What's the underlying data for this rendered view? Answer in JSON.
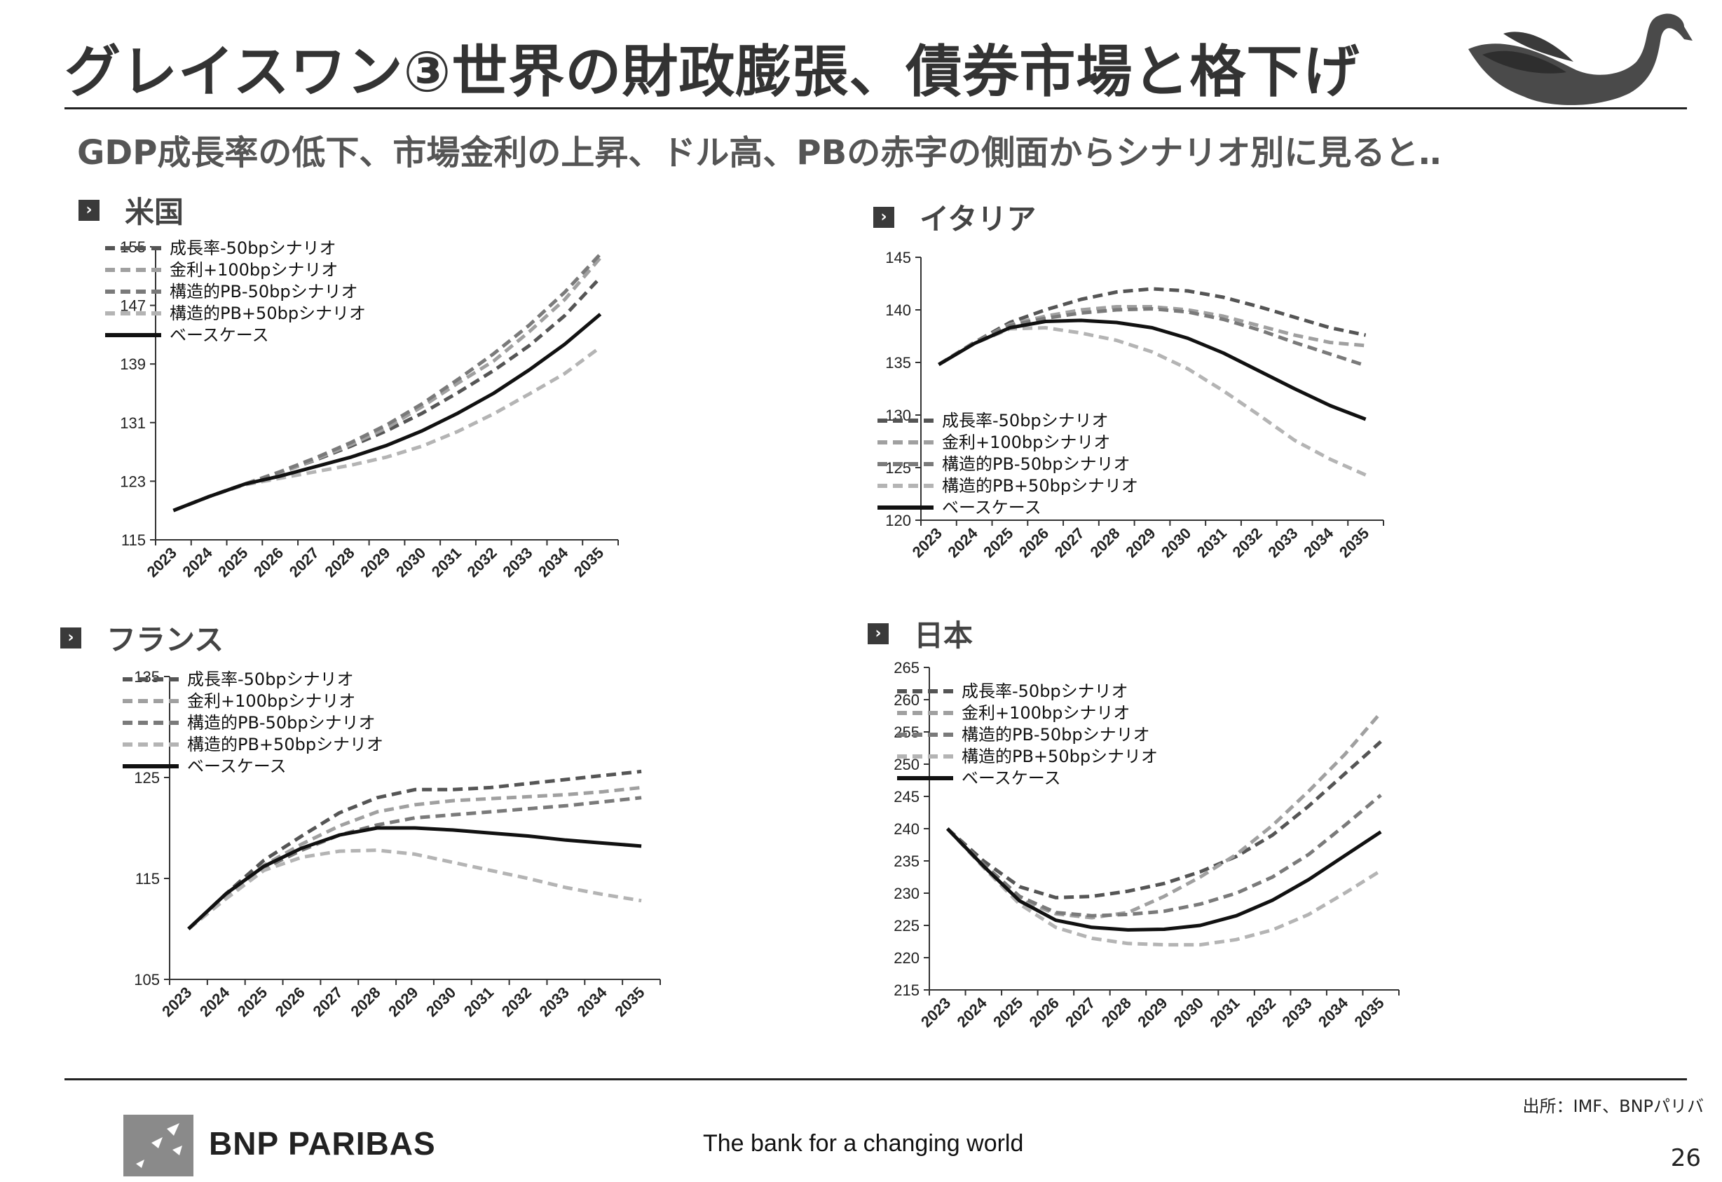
{
  "title": "グレイスワン③世界の財政膨張、債券市場と格下げ",
  "subtitle": "GDP成長率の低下、市場金利の上昇、ドル高、PBの赤字の側面からシナリオ別に見ると‥",
  "section_marker": "›",
  "source": "出所：IMF、BNPパリバ",
  "page_number": "26",
  "brand": {
    "logo_text": "BNP PARIBAS",
    "tagline": "The bank for a changing world"
  },
  "colors": {
    "growth": "#555555",
    "rate": "#a0a0a0",
    "pb_minus": "#7a7a7a",
    "pb_plus": "#b4b4b4",
    "base": "#111111"
  },
  "chart_data": [
    {
      "id": "us",
      "country": "米国",
      "type": "line",
      "categories": [
        "2023",
        "2024",
        "2025",
        "2026",
        "2027",
        "2028",
        "2029",
        "2030",
        "2031",
        "2032",
        "2033",
        "2034",
        "2035"
      ],
      "ylim": [
        115,
        155
      ],
      "yticks": [
        115,
        123,
        131,
        139,
        147,
        155
      ],
      "series": [
        {
          "name": "成長率-50bpシナリオ",
          "style": "growth",
          "values": [
            119.0,
            120.9,
            122.6,
            124.2,
            125.9,
            127.8,
            129.9,
            132.3,
            135.1,
            138.1,
            141.5,
            145.6,
            150.8
          ]
        },
        {
          "name": "金利+100bpシナリオ",
          "style": "rate",
          "values": [
            119.0,
            120.9,
            122.6,
            124.1,
            126.0,
            128.0,
            130.3,
            133.2,
            136.4,
            139.4,
            143.4,
            147.8,
            153.5
          ]
        },
        {
          "name": "構造的PB-50bpシナリオ",
          "style": "pb_minus",
          "values": [
            119.0,
            120.9,
            122.6,
            124.3,
            126.2,
            128.3,
            130.7,
            133.6,
            136.9,
            140.4,
            144.3,
            148.8,
            154.0
          ]
        },
        {
          "name": "構造的PB+50bpシナリオ",
          "style": "pb_plus",
          "values": [
            119.0,
            120.9,
            122.5,
            123.4,
            124.3,
            125.2,
            126.3,
            127.8,
            129.8,
            132.2,
            134.9,
            137.7,
            141.3
          ]
        },
        {
          "name": "ベースケース",
          "style": "base",
          "values": [
            119.0,
            120.9,
            122.6,
            123.7,
            125.0,
            126.3,
            127.9,
            129.9,
            132.3,
            135.0,
            138.2,
            141.7,
            145.8
          ]
        }
      ]
    },
    {
      "id": "italy",
      "country": "イタリア",
      "type": "line",
      "categories": [
        "2023",
        "2024",
        "2025",
        "2026",
        "2027",
        "2028",
        "2029",
        "2030",
        "2031",
        "2032",
        "2033",
        "2034",
        "2035"
      ],
      "ylim": [
        120,
        145
      ],
      "yticks": [
        120,
        125,
        130,
        135,
        140,
        145
      ],
      "series": [
        {
          "name": "成長率-50bpシナリオ",
          "style": "growth",
          "values": [
            134.8,
            136.9,
            138.8,
            140.0,
            141.0,
            141.7,
            142.0,
            141.8,
            141.2,
            140.3,
            139.3,
            138.3,
            137.6
          ]
        },
        {
          "name": "金利+100bpシナリオ",
          "style": "rate",
          "values": [
            134.8,
            136.9,
            138.6,
            139.4,
            140.0,
            140.3,
            140.3,
            140.0,
            139.4,
            138.5,
            137.6,
            136.9,
            136.6
          ]
        },
        {
          "name": "構造的PB-50bpシナリオ",
          "style": "pb_minus",
          "values": [
            134.8,
            136.9,
            138.5,
            139.2,
            139.7,
            140.0,
            140.1,
            139.8,
            139.1,
            138.1,
            136.9,
            135.8,
            134.7
          ]
        },
        {
          "name": "構造的PB+50bpシナリオ",
          "style": "pb_plus",
          "values": [
            134.8,
            136.8,
            138.2,
            138.3,
            137.8,
            137.1,
            136.0,
            134.4,
            132.3,
            130.0,
            127.6,
            125.8,
            124.3
          ]
        },
        {
          "name": "ベースケース",
          "style": "base",
          "values": [
            134.8,
            136.8,
            138.3,
            138.9,
            139.0,
            138.8,
            138.3,
            137.3,
            135.9,
            134.2,
            132.5,
            130.9,
            129.6
          ]
        }
      ]
    },
    {
      "id": "france",
      "country": "フランス",
      "type": "line",
      "categories": [
        "2023",
        "2024",
        "2025",
        "2026",
        "2027",
        "2028",
        "2029",
        "2030",
        "2031",
        "2032",
        "2033",
        "2034",
        "2035"
      ],
      "ylim": [
        105,
        135
      ],
      "yticks": [
        105,
        115,
        125,
        135
      ],
      "series": [
        {
          "name": "成長率-50bpシナリオ",
          "style": "growth",
          "values": [
            110.0,
            113.5,
            116.8,
            119.2,
            121.5,
            123.0,
            123.8,
            123.8,
            124.0,
            124.4,
            124.8,
            125.2,
            125.6
          ]
        },
        {
          "name": "金利+100bpシナリオ",
          "style": "rate",
          "values": [
            110.0,
            113.3,
            116.3,
            118.4,
            120.2,
            121.6,
            122.3,
            122.7,
            122.9,
            123.1,
            123.3,
            123.6,
            124.0
          ]
        },
        {
          "name": "構造的PB-50bpシナリオ",
          "style": "pb_minus",
          "values": [
            110.0,
            113.2,
            116.0,
            117.8,
            119.3,
            120.3,
            121.0,
            121.3,
            121.6,
            121.9,
            122.2,
            122.6,
            123.0
          ]
        },
        {
          "name": "構造的PB+50bpシナリオ",
          "style": "pb_plus",
          "values": [
            110.0,
            113.0,
            115.8,
            117.1,
            117.7,
            117.8,
            117.4,
            116.6,
            115.8,
            115.0,
            114.1,
            113.4,
            112.8
          ]
        },
        {
          "name": "ベースケース",
          "style": "base",
          "values": [
            110.0,
            113.5,
            116.2,
            118.0,
            119.3,
            120.0,
            120.0,
            119.8,
            119.5,
            119.2,
            118.8,
            118.5,
            118.2
          ]
        }
      ]
    },
    {
      "id": "japan",
      "country": "日本",
      "type": "line",
      "categories": [
        "2023",
        "2024",
        "2025",
        "2026",
        "2027",
        "2028",
        "2029",
        "2030",
        "2031",
        "2032",
        "2033",
        "2034",
        "2035"
      ],
      "ylim": [
        215,
        265
      ],
      "yticks": [
        215,
        220,
        225,
        230,
        235,
        240,
        245,
        250,
        255,
        260,
        265
      ],
      "series": [
        {
          "name": "成長率-50bpシナリオ",
          "style": "growth",
          "values": [
            240.0,
            235.0,
            231.0,
            229.3,
            229.5,
            230.3,
            231.5,
            233.3,
            235.7,
            239.0,
            243.5,
            248.5,
            253.5
          ]
        },
        {
          "name": "金利+100bpシナリオ",
          "style": "rate",
          "values": [
            240.0,
            234.5,
            229.0,
            226.8,
            226.2,
            227.0,
            229.5,
            232.5,
            236.0,
            240.5,
            245.8,
            251.5,
            258.0
          ]
        },
        {
          "name": "構造的PB-50bpシナリオ",
          "style": "pb_minus",
          "values": [
            240.0,
            234.5,
            229.5,
            227.0,
            226.5,
            226.7,
            227.2,
            228.3,
            230.0,
            232.5,
            236.0,
            240.5,
            245.2
          ]
        },
        {
          "name": "構造的PB+50bpシナリオ",
          "style": "pb_plus",
          "values": [
            240.0,
            234.0,
            228.3,
            224.7,
            223.0,
            222.2,
            222.0,
            222.0,
            222.8,
            224.3,
            226.7,
            230.0,
            233.5
          ]
        },
        {
          "name": "ベースケース",
          "style": "base",
          "values": [
            240.0,
            234.2,
            228.8,
            225.8,
            224.7,
            224.3,
            224.4,
            225.0,
            226.5,
            228.9,
            232.1,
            235.8,
            239.5
          ]
        }
      ]
    }
  ]
}
